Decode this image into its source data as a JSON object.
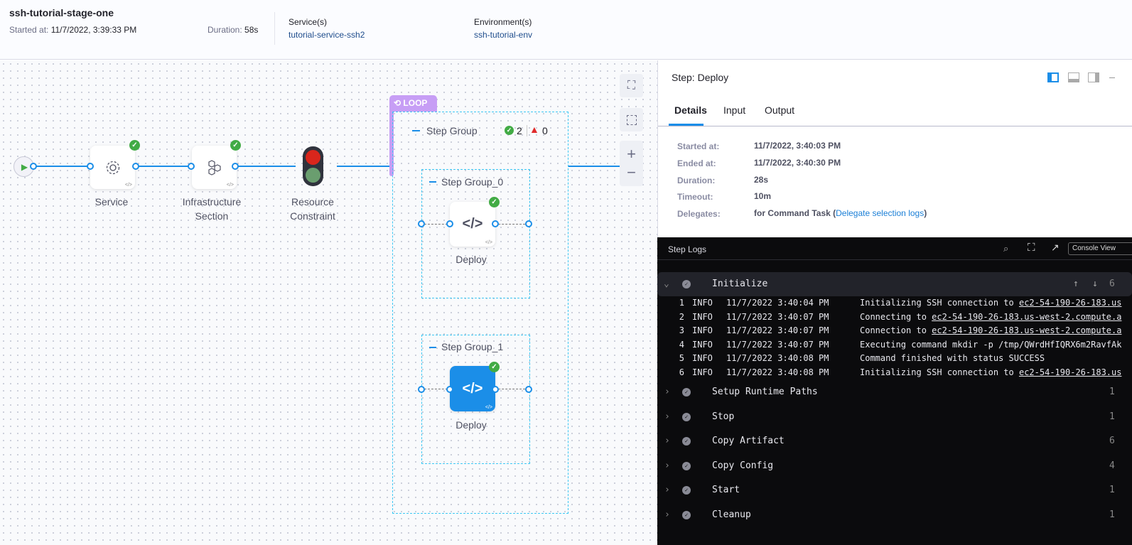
{
  "header": {
    "title": "ssh-tutorial-stage-one",
    "started_label": "Started at:",
    "started_value": "11/7/2022, 3:39:33 PM",
    "duration_label": "Duration:",
    "duration_value": "58s",
    "service_label": "Service(s)",
    "service_value": "tutorial-service-ssh2",
    "env_label": "Environment(s)",
    "env_value": "ssh-tutorial-env"
  },
  "pipeline": {
    "nodes": [
      {
        "label": "Service",
        "icon": "gear-icon",
        "status": "success"
      },
      {
        "label": "Infrastructure Section",
        "icon": "hexagons-icon",
        "status": "success"
      },
      {
        "label": "Resource Constraint",
        "icon": "traffic-light-icon"
      }
    ],
    "loop_label": "LOOP",
    "step_group": {
      "label": "Step Group",
      "success_count": "2",
      "failed_count": "0"
    },
    "groups": [
      {
        "label": "Step Group_0",
        "step": "Deploy",
        "status": "success"
      },
      {
        "label": "Step Group_1",
        "step": "Deploy",
        "status": "success",
        "selected": true
      }
    ]
  },
  "colors": {
    "accent": "#1b8ee8",
    "success": "#42ab45",
    "loop": "#c79ef5",
    "error": "#e02b2b"
  },
  "panel": {
    "title": "Step: Deploy",
    "tabs": [
      "Details",
      "Input",
      "Output"
    ],
    "active_tab": "Details",
    "details": [
      {
        "label": "Started at:",
        "value": "11/7/2022, 3:40:03 PM"
      },
      {
        "label": "Ended at:",
        "value": "11/7/2022, 3:40:30 PM"
      },
      {
        "label": "Duration:",
        "value": "28s"
      },
      {
        "label": "Timeout:",
        "value": "10m"
      },
      {
        "label": "Delegates:",
        "value": "for Command Task (",
        "link": "Delegate selection logs",
        "suffix": ")"
      }
    ]
  },
  "logs": {
    "title": "Step Logs",
    "console_view": "Console View",
    "expanded": {
      "name": "Initialize",
      "count": "6",
      "lines": [
        {
          "n": "1",
          "level": "INFO",
          "time": "11/7/2022 3:40:04 PM",
          "pre": "Initializing SSH connection to ",
          "host": "ec2-54-190-26-183.us"
        },
        {
          "n": "2",
          "level": "INFO",
          "time": "11/7/2022 3:40:07 PM",
          "pre": "Connecting to ",
          "host": "ec2-54-190-26-183.us-west-2.compute.a"
        },
        {
          "n": "3",
          "level": "INFO",
          "time": "11/7/2022 3:40:07 PM",
          "pre": "Connection to ",
          "host": "ec2-54-190-26-183.us-west-2.compute.a"
        },
        {
          "n": "4",
          "level": "INFO",
          "time": "11/7/2022 3:40:07 PM",
          "pre": "Executing command mkdir -p /tmp/QWrdHfIQRX6m2RavfAk",
          "host": ""
        },
        {
          "n": "5",
          "level": "INFO",
          "time": "11/7/2022 3:40:08 PM",
          "pre": "Command finished with status SUCCESS",
          "host": ""
        },
        {
          "n": "6",
          "level": "INFO",
          "time": "11/7/2022 3:40:08 PM",
          "pre": "Initializing SSH connection to ",
          "host": "ec2-54-190-26-183.us"
        }
      ]
    },
    "sections": [
      {
        "name": "Setup Runtime Paths",
        "count": "1"
      },
      {
        "name": "Stop",
        "count": "1"
      },
      {
        "name": "Copy Artifact",
        "count": "6"
      },
      {
        "name": "Copy Config",
        "count": "4"
      },
      {
        "name": "Start",
        "count": "1"
      },
      {
        "name": "Cleanup",
        "count": "1"
      }
    ]
  }
}
